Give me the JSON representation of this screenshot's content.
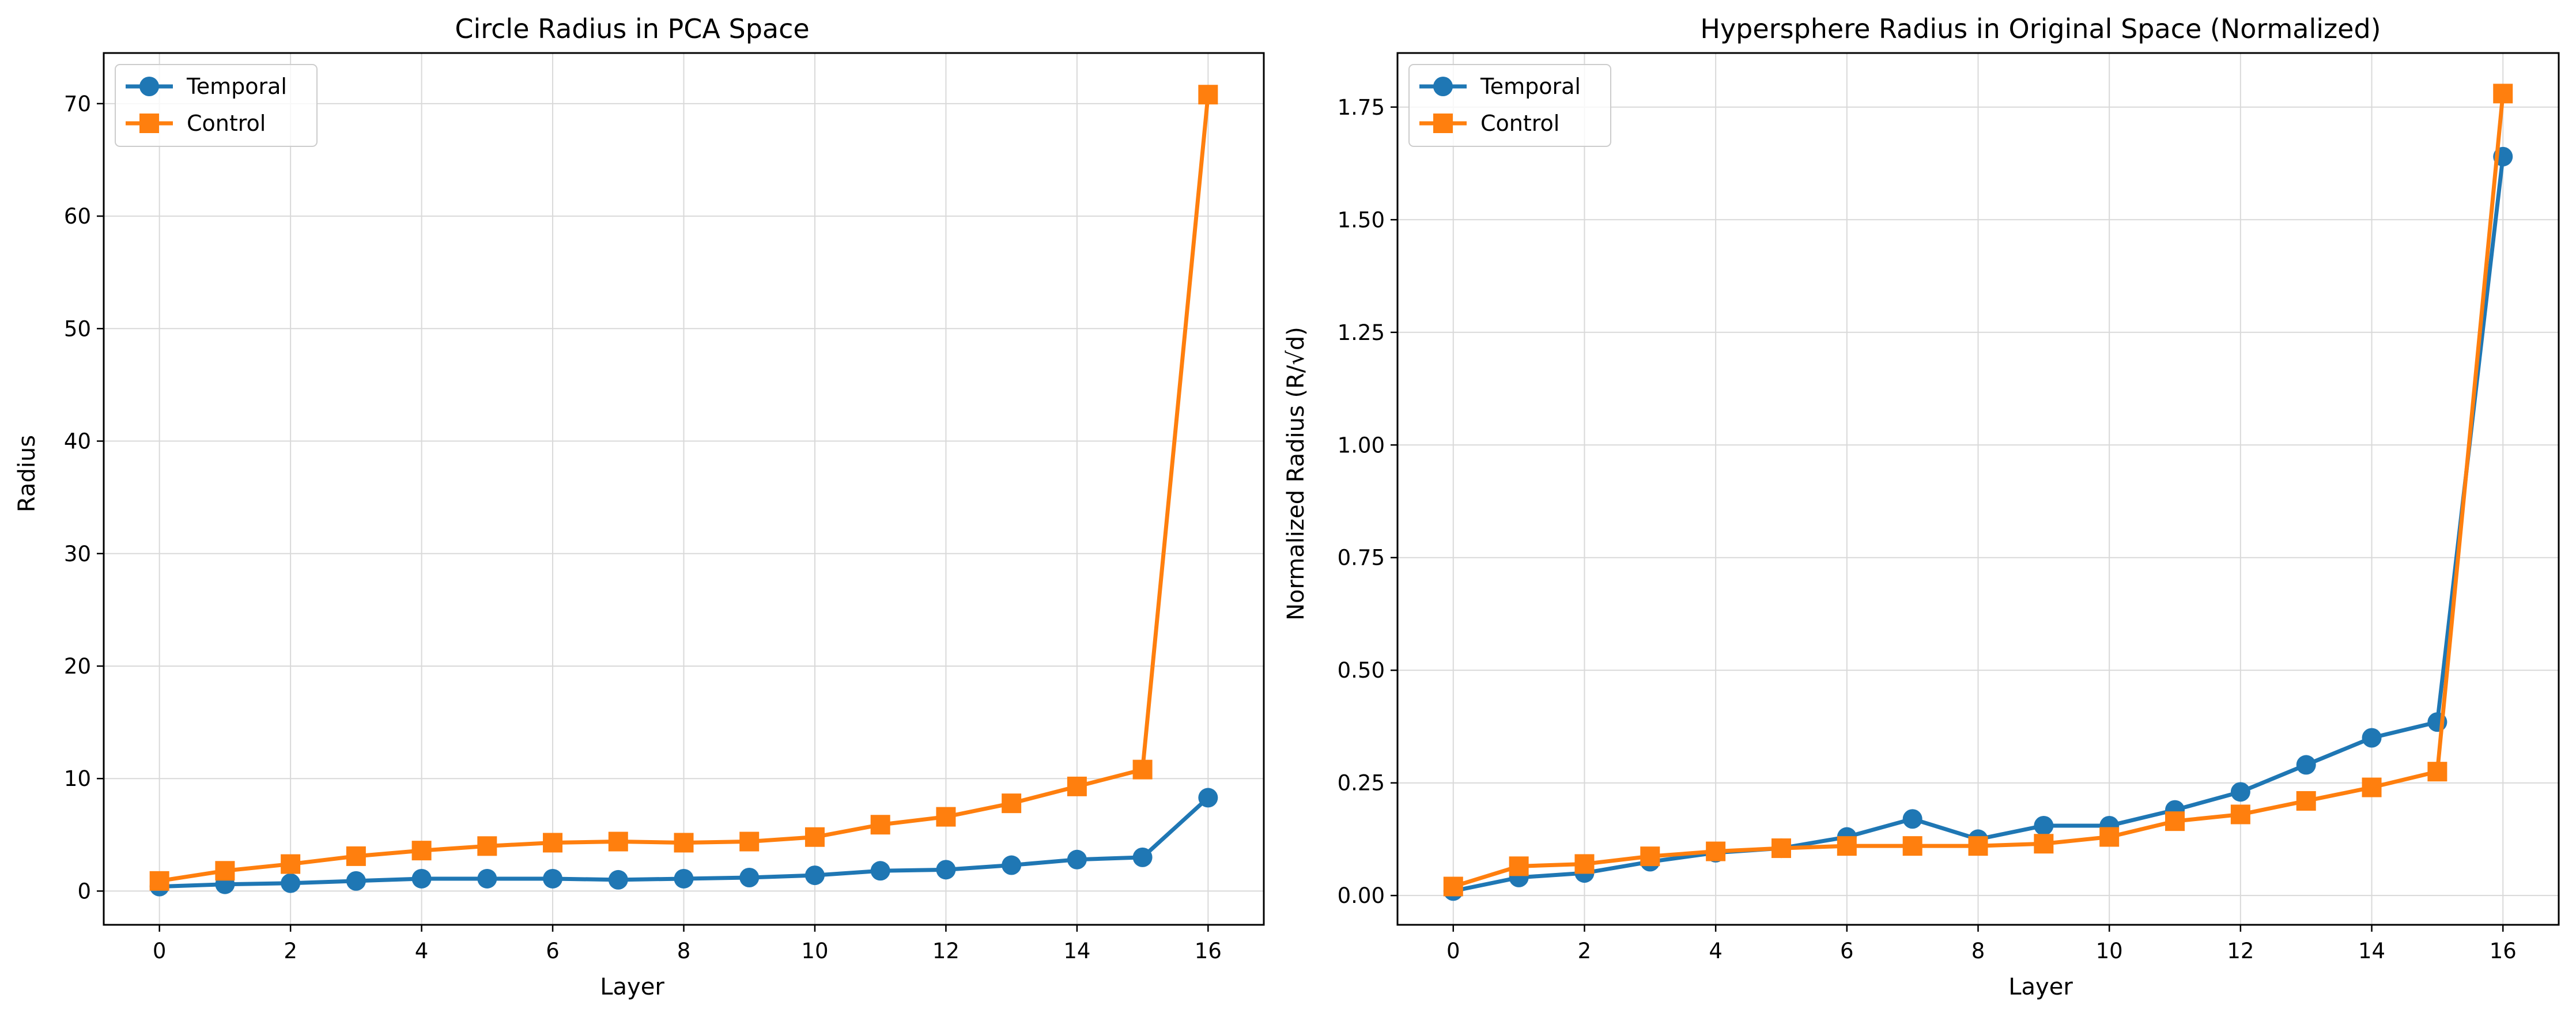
{
  "colors": {
    "temporal": "#1f77b4",
    "control": "#ff7f0e",
    "grid": "#d9d9d9",
    "frame": "#000000"
  },
  "chart_data": [
    {
      "type": "line",
      "title": "Circle Radius in PCA Space",
      "xlabel": "Layer",
      "ylabel": "Radius",
      "xlim": [
        -0.85,
        16.85
      ],
      "ylim": [
        -3.0,
        74.5
      ],
      "xticks": [
        0,
        2,
        4,
        6,
        8,
        10,
        12,
        14,
        16
      ],
      "yticks": [
        0,
        10,
        20,
        30,
        40,
        50,
        60,
        70
      ],
      "grid": true,
      "legend": "top-left",
      "x": [
        0,
        1,
        2,
        3,
        4,
        5,
        6,
        7,
        8,
        9,
        10,
        11,
        12,
        13,
        14,
        15,
        16
      ],
      "series": [
        {
          "name": "Temporal",
          "marker": "circle",
          "color": "#1f77b4",
          "values": [
            0.4,
            0.6,
            0.7,
            0.9,
            1.1,
            1.1,
            1.1,
            1.0,
            1.1,
            1.2,
            1.4,
            1.8,
            1.9,
            2.3,
            2.8,
            3.0,
            8.3
          ]
        },
        {
          "name": "Control",
          "marker": "square",
          "color": "#ff7f0e",
          "values": [
            0.9,
            1.8,
            2.4,
            3.1,
            3.6,
            4.0,
            4.3,
            4.4,
            4.3,
            4.4,
            4.8,
            5.9,
            6.6,
            7.8,
            9.3,
            10.8,
            70.8
          ]
        }
      ]
    },
    {
      "type": "line",
      "title": "Hypersphere Radius in Original Space (Normalized)",
      "xlabel": "Layer",
      "ylabel": "Normalized Radius (R/√d)",
      "xlim": [
        -0.85,
        16.85
      ],
      "ylim": [
        -0.065,
        1.87
      ],
      "xticks": [
        0,
        2,
        4,
        6,
        8,
        10,
        12,
        14,
        16
      ],
      "yticks": [
        "0.00",
        "0.25",
        "0.50",
        "0.75",
        "1.00",
        "1.25",
        "1.50",
        "1.75"
      ],
      "grid": true,
      "legend": "top-left",
      "x": [
        0,
        1,
        2,
        3,
        4,
        5,
        6,
        7,
        8,
        9,
        10,
        11,
        12,
        13,
        14,
        15,
        16
      ],
      "series": [
        {
          "name": "Temporal",
          "marker": "circle",
          "color": "#1f77b4",
          "values": [
            0.01,
            0.04,
            0.05,
            0.075,
            0.095,
            0.105,
            0.13,
            0.17,
            0.125,
            0.155,
            0.155,
            0.19,
            0.23,
            0.29,
            0.35,
            0.385,
            1.64
          ]
        },
        {
          "name": "Control",
          "marker": "square",
          "color": "#ff7f0e",
          "values": [
            0.02,
            0.065,
            0.07,
            0.087,
            0.098,
            0.105,
            0.11,
            0.11,
            0.11,
            0.115,
            0.13,
            0.165,
            0.18,
            0.21,
            0.24,
            0.275,
            1.78
          ]
        }
      ]
    }
  ]
}
